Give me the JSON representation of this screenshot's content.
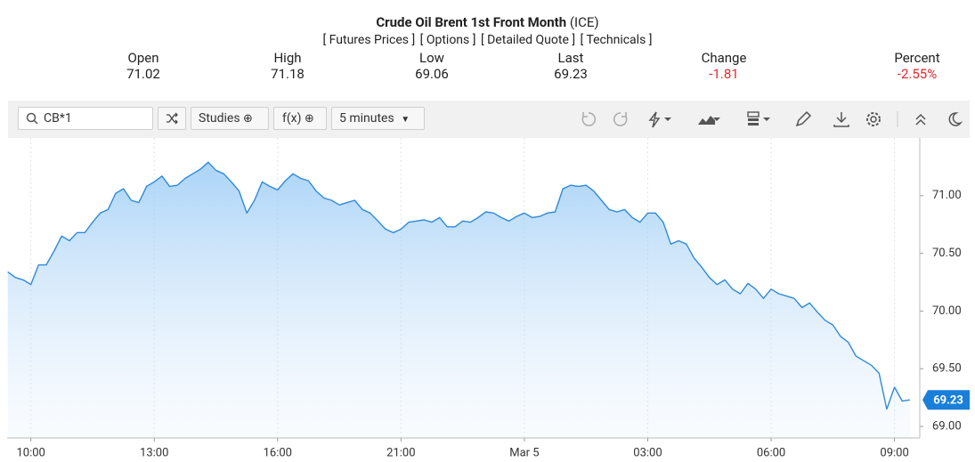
{
  "header": {
    "title": "Crude Oil Brent 1st Front Month",
    "exchange": "(ICE)",
    "links": [
      "[ Futures Prices ]",
      "[ Options ]",
      "[ Detailed Quote ]",
      "[ Technicals ]"
    ]
  },
  "quote": [
    {
      "label": "Open",
      "value": "71.02"
    },
    {
      "label": "High",
      "value": "71.18"
    },
    {
      "label": "Low",
      "value": "69.06"
    },
    {
      "label": "Last",
      "value": "69.23"
    },
    {
      "label": "Change",
      "value": "-1.81"
    },
    {
      "label": "Percent",
      "value": "-2.55%"
    }
  ],
  "toolbar": {
    "symbol": "CB*1",
    "studies": "Studies",
    "fx": "f(x)",
    "interval": "5 minutes"
  },
  "chart_data": {
    "type": "line",
    "color": "#2f8ad8",
    "grid": true,
    "categories": [
      null,
      null,
      null,
      "10:00",
      null,
      null,
      null,
      null,
      null,
      null,
      null,
      null,
      null,
      null,
      null,
      null,
      null,
      null,
      null,
      "13:00",
      null,
      null,
      null,
      null,
      null,
      null,
      null,
      null,
      null,
      null,
      null,
      null,
      null,
      null,
      null,
      "16:00",
      null,
      null,
      null,
      null,
      null,
      null,
      null,
      null,
      null,
      null,
      null,
      null,
      null,
      null,
      null,
      "21:00",
      null,
      null,
      null,
      null,
      null,
      null,
      null,
      null,
      null,
      null,
      null,
      null,
      null,
      null,
      null,
      "Mar 5",
      null,
      null,
      null,
      null,
      null,
      null,
      null,
      null,
      null,
      null,
      null,
      null,
      null,
      null,
      null,
      "03:00",
      null,
      null,
      null,
      null,
      null,
      null,
      null,
      null,
      null,
      null,
      null,
      null,
      null,
      null,
      null,
      "06:00",
      null,
      null,
      null,
      null,
      null,
      null,
      null,
      null,
      null,
      null,
      null,
      null,
      null,
      null,
      null,
      "09:00",
      null,
      null
    ],
    "values": [
      70.34,
      70.29,
      70.27,
      70.23,
      70.4,
      70.4,
      70.52,
      70.65,
      70.61,
      70.68,
      70.68,
      70.77,
      70.85,
      70.88,
      71.02,
      71.06,
      70.96,
      70.94,
      71.08,
      71.12,
      71.17,
      71.08,
      71.09,
      71.15,
      71.19,
      71.23,
      71.29,
      71.22,
      71.19,
      71.12,
      71.04,
      70.85,
      70.96,
      71.12,
      71.08,
      71.05,
      71.13,
      71.19,
      71.15,
      71.13,
      71.04,
      70.98,
      70.96,
      70.92,
      70.94,
      70.96,
      70.88,
      70.85,
      70.78,
      70.71,
      70.68,
      70.71,
      70.77,
      70.78,
      70.79,
      70.77,
      70.81,
      70.73,
      70.73,
      70.78,
      70.77,
      70.81,
      70.86,
      70.85,
      70.81,
      70.78,
      70.82,
      70.85,
      70.81,
      70.82,
      70.85,
      70.86,
      71.06,
      71.09,
      71.08,
      71.09,
      71.04,
      70.96,
      70.88,
      70.86,
      70.88,
      70.81,
      70.77,
      70.85,
      70.85,
      70.77,
      70.58,
      70.61,
      70.58,
      70.46,
      70.38,
      70.29,
      70.23,
      70.27,
      70.19,
      70.15,
      70.24,
      70.19,
      70.11,
      70.19,
      70.15,
      70.13,
      70.11,
      70.03,
      70.07,
      69.99,
      69.92,
      69.88,
      69.78,
      69.73,
      69.61,
      69.57,
      69.53,
      69.46,
      69.15,
      69.34,
      69.22,
      69.23
    ],
    "ylim": [
      68.9,
      71.5
    ],
    "yticks": [
      {
        "value": 69,
        "label": "69.00"
      },
      {
        "value": 69.5,
        "label": "69.50"
      },
      {
        "value": 70,
        "label": "70.00"
      },
      {
        "value": 70.5,
        "label": "70.50"
      },
      {
        "value": 71,
        "label": "71.00"
      }
    ]
  }
}
